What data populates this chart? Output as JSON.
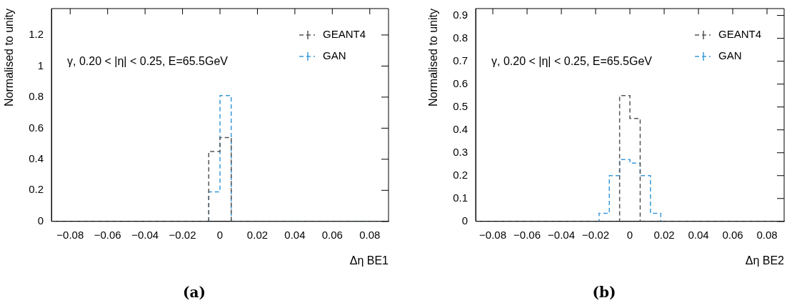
{
  "chart_data": [
    {
      "type": "histogram",
      "title": "(a)",
      "xlabel": "Δη BE1",
      "ylabel": "Normalised to unity",
      "annotations": [
        "γ, 0.20 < |η| < 0.25, E=65.5GeV"
      ],
      "bins": [
        -0.09,
        -0.084,
        -0.078,
        -0.072,
        -0.066,
        -0.06,
        -0.054,
        -0.048,
        -0.042,
        -0.036,
        -0.03,
        -0.024,
        -0.018,
        -0.012,
        -0.006,
        0,
        0.006,
        0.012,
        0.018,
        0.024,
        0.03,
        0.036,
        0.042,
        0.048,
        0.054,
        0.06,
        0.066,
        0.072,
        0.078,
        0.084,
        0.09
      ],
      "series": [
        {
          "name": "GEANT4",
          "color": "#555555",
          "values": [
            0,
            0,
            0,
            0,
            0,
            0,
            0,
            0,
            0,
            0,
            0,
            0,
            0,
            0,
            0.45,
            0.54,
            0,
            0,
            0,
            0,
            0,
            0,
            0,
            0,
            0,
            0,
            0,
            0,
            0,
            0
          ]
        },
        {
          "name": "GAN",
          "color": "#3a9ad9",
          "values": [
            0,
            0,
            0,
            0,
            0,
            0,
            0,
            0,
            0,
            0,
            0,
            0,
            0,
            0,
            0.19,
            0.81,
            0,
            0,
            0,
            0,
            0,
            0,
            0,
            0,
            0,
            0,
            0,
            0,
            0,
            0
          ]
        }
      ],
      "xlim": [
        -0.09,
        0.09
      ],
      "xticks": [
        -0.08,
        -0.06,
        -0.04,
        -0.02,
        0,
        0.02,
        0.04,
        0.06,
        0.08
      ],
      "ylim": [
        0,
        1.37
      ],
      "yticks": [
        0,
        0.2,
        0.4,
        0.6,
        0.8,
        1,
        1.2
      ],
      "grid": false,
      "legend": "top right",
      "line_style": "dashed"
    },
    {
      "type": "histogram",
      "title": "(b)",
      "xlabel": "Δη BE2",
      "ylabel": "Normalised to unity",
      "annotations": [
        "γ, 0.20 < |η| < 0.25, E=65.5GeV"
      ],
      "bins": [
        -0.09,
        -0.084,
        -0.078,
        -0.072,
        -0.066,
        -0.06,
        -0.054,
        -0.048,
        -0.042,
        -0.036,
        -0.03,
        -0.024,
        -0.018,
        -0.012,
        -0.006,
        0,
        0.006,
        0.012,
        0.018,
        0.024,
        0.03,
        0.036,
        0.042,
        0.048,
        0.054,
        0.06,
        0.066,
        0.072,
        0.078,
        0.084,
        0.09
      ],
      "series": [
        {
          "name": "GEANT4",
          "color": "#555555",
          "values": [
            0,
            0,
            0,
            0,
            0,
            0,
            0,
            0,
            0,
            0,
            0,
            0,
            0,
            0,
            0.55,
            0.45,
            0,
            0,
            0,
            0,
            0,
            0,
            0,
            0,
            0,
            0,
            0,
            0,
            0,
            0
          ]
        },
        {
          "name": "GAN",
          "color": "#3a9ad9",
          "values": [
            0,
            0,
            0,
            0,
            0,
            0,
            0,
            0,
            0,
            0,
            0,
            0,
            0.035,
            0.2,
            0.27,
            0.255,
            0.2,
            0.035,
            0,
            0,
            0,
            0,
            0,
            0,
            0,
            0,
            0,
            0,
            0,
            0
          ]
        }
      ],
      "xlim": [
        -0.09,
        0.09
      ],
      "xticks": [
        -0.08,
        -0.06,
        -0.04,
        -0.02,
        0,
        0.02,
        0.04,
        0.06,
        0.08
      ],
      "ylim": [
        0,
        0.93
      ],
      "yticks": [
        0,
        0.1,
        0.2,
        0.3,
        0.4,
        0.5,
        0.6,
        0.7,
        0.8,
        0.9
      ],
      "grid": false,
      "legend": "top right",
      "line_style": "dashed"
    }
  ]
}
